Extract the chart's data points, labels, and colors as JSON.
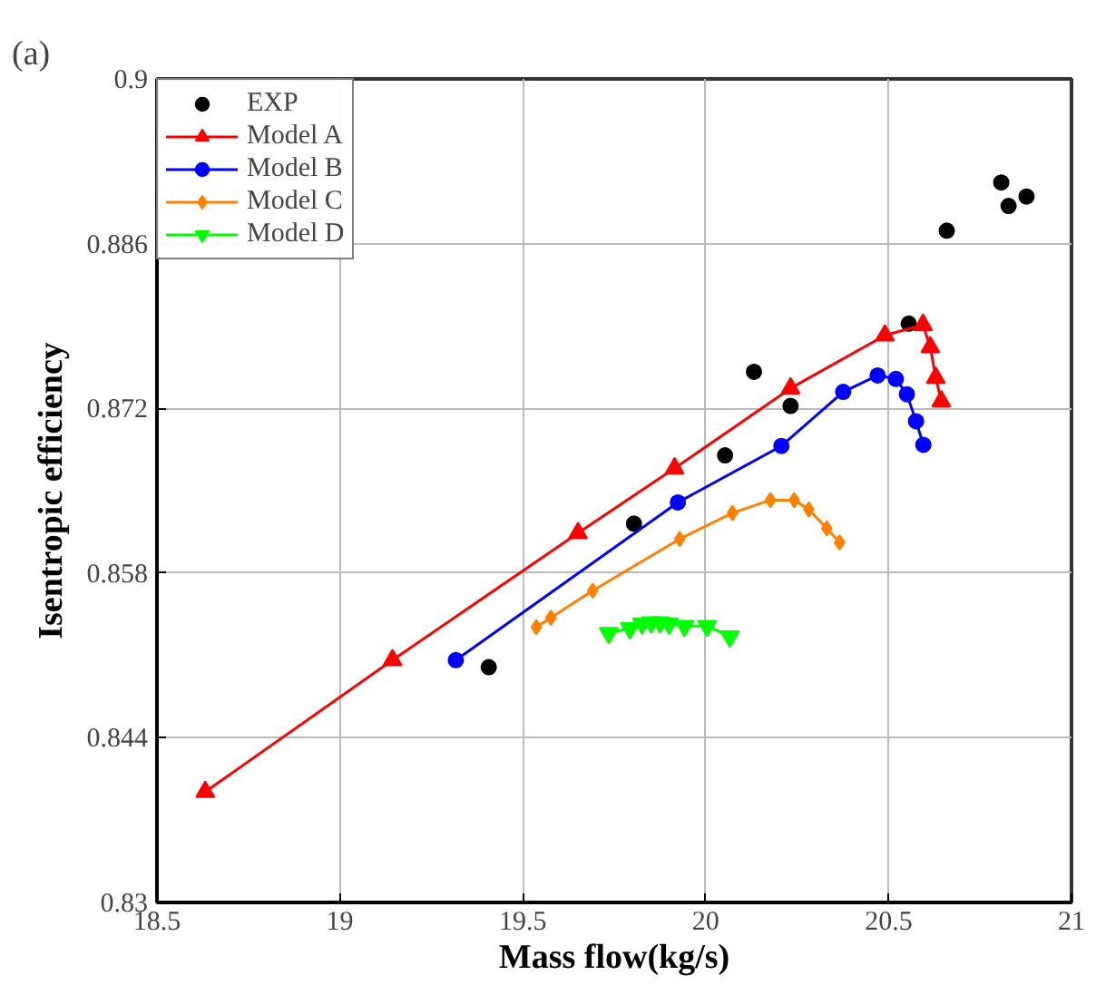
{
  "chart_data": {
    "type": "line",
    "xlabel": "Mass flow(kg/s)",
    "ylabel": "Isentropic efficiency",
    "annotations": [
      "(a)"
    ],
    "xlim": [
      18.5,
      21
    ],
    "xticks": [
      18.5,
      19,
      19.5,
      20,
      20.5,
      21
    ],
    "ylim": [
      0.83,
      0.9
    ],
    "yticks": [
      0.83,
      0.844,
      0.858,
      0.872,
      0.886,
      0.9
    ],
    "grid": true,
    "legend": "top left",
    "series": [
      {
        "name": "EXP",
        "type": "scatter",
        "marker": "circle",
        "color": "#000000",
        "x": [
          19.407,
          19.804,
          20.053,
          20.132,
          20.232,
          20.555,
          20.659,
          20.808,
          20.828,
          20.877
        ],
        "values": [
          0.85,
          0.8622,
          0.868,
          0.8751,
          0.8722,
          0.8792,
          0.8871,
          0.8912,
          0.8892,
          0.89
        ]
      },
      {
        "name": "Model A",
        "marker": "triangle",
        "color": "#ff0000",
        "x": [
          18.632,
          19.144,
          19.651,
          19.915,
          20.232,
          20.49,
          20.594,
          20.614,
          20.629,
          20.644
        ],
        "values": [
          0.8394,
          0.8506,
          0.8614,
          0.8669,
          0.8737,
          0.8782,
          0.8791,
          0.8772,
          0.8746,
          0.8726
        ]
      },
      {
        "name": "Model B",
        "marker": "circle",
        "color": "#0000ff",
        "x": [
          19.317,
          19.924,
          20.207,
          20.376,
          20.47,
          20.52,
          20.55,
          20.575,
          20.595
        ],
        "values": [
          0.8506,
          0.864,
          0.8688,
          0.8734,
          0.8748,
          0.8745,
          0.8732,
          0.8709,
          0.8689
        ]
      },
      {
        "name": "Model C",
        "marker": "diamond",
        "color": "#ff8000",
        "x": [
          19.537,
          19.577,
          19.691,
          19.929,
          20.073,
          20.177,
          20.242,
          20.282,
          20.331,
          20.366
        ],
        "values": [
          0.8534,
          0.8542,
          0.8565,
          0.8609,
          0.8631,
          0.8642,
          0.8642,
          0.8634,
          0.8618,
          0.8606
        ]
      },
      {
        "name": "Model D",
        "marker": "triangle_down",
        "color": "#00ff00",
        "x": [
          19.735,
          19.793,
          19.826,
          19.851,
          19.875,
          19.9,
          19.942,
          20.004,
          20.066
        ],
        "values": [
          0.8529,
          0.8533,
          0.8537,
          0.8538,
          0.8538,
          0.8537,
          0.8535,
          0.8535,
          0.8526
        ]
      }
    ]
  }
}
